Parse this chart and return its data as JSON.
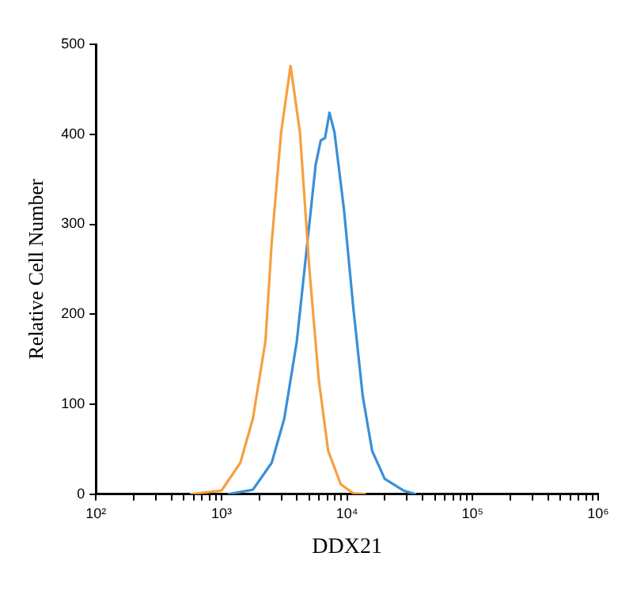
{
  "chart_data": {
    "type": "line",
    "xlabel": "DDX21",
    "ylabel": "Relative Cell Number",
    "log": "x",
    "grid": false,
    "legend": false,
    "marker": "none",
    "line_style": "solid",
    "xlim": [
      100,
      1000000
    ],
    "ylim": [
      0,
      500
    ],
    "xticks": [
      {
        "value": 100,
        "label": "10²"
      },
      {
        "value": 200,
        "label": null
      },
      {
        "value": 300,
        "label": null
      },
      {
        "value": 400,
        "label": null
      },
      {
        "value": 500,
        "label": null
      },
      {
        "value": 600,
        "label": null
      },
      {
        "value": 700,
        "label": null
      },
      {
        "value": 800,
        "label": null
      },
      {
        "value": 900,
        "label": null
      },
      {
        "value": 1000,
        "label": "10³"
      },
      {
        "value": 2000,
        "label": null
      },
      {
        "value": 3000,
        "label": null
      },
      {
        "value": 4000,
        "label": null
      },
      {
        "value": 5000,
        "label": null
      },
      {
        "value": 6000,
        "label": null
      },
      {
        "value": 7000,
        "label": null
      },
      {
        "value": 8000,
        "label": null
      },
      {
        "value": 9000,
        "label": null
      },
      {
        "value": 10000,
        "label": "10⁴"
      },
      {
        "value": 20000,
        "label": null
      },
      {
        "value": 30000,
        "label": null
      },
      {
        "value": 40000,
        "label": null
      },
      {
        "value": 50000,
        "label": null
      },
      {
        "value": 60000,
        "label": null
      },
      {
        "value": 70000,
        "label": null
      },
      {
        "value": 80000,
        "label": null
      },
      {
        "value": 90000,
        "label": null
      },
      {
        "value": 100000,
        "label": "10⁵"
      },
      {
        "value": 200000,
        "label": null
      },
      {
        "value": 300000,
        "label": null
      },
      {
        "value": 400000,
        "label": null
      },
      {
        "value": 500000,
        "label": null
      },
      {
        "value": 600000,
        "label": null
      },
      {
        "value": 700000,
        "label": null
      },
      {
        "value": 800000,
        "label": null
      },
      {
        "value": 900000,
        "label": null
      },
      {
        "value": 1000000,
        "label": "10⁶"
      }
    ],
    "yticks": [
      0,
      100,
      200,
      300,
      400,
      500
    ],
    "series": [
      {
        "color": "#f5a040",
        "x": [
          562,
          1000,
          1413,
          1778,
          2239,
          2512,
          2985,
          3548,
          4217,
          5012,
          5957,
          7079,
          8913,
          11220,
          14125
        ],
        "values": [
          0,
          4,
          35,
          84,
          170,
          280,
          402,
          476,
          402,
          250,
          127,
          48,
          11,
          1,
          0
        ]
      },
      {
        "color": "#3a8fd8",
        "x": [
          1122,
          1778,
          2512,
          3162,
          3981,
          4732,
          5623,
          6166,
          6683,
          7244,
          7943,
          9441,
          11220,
          13335,
          15849,
          19953,
          28184,
          35481
        ],
        "values": [
          0,
          5,
          35,
          84,
          170,
          268,
          366,
          393,
          396,
          424,
          402,
          317,
          207,
          109,
          48,
          17,
          4,
          0
        ]
      }
    ]
  }
}
